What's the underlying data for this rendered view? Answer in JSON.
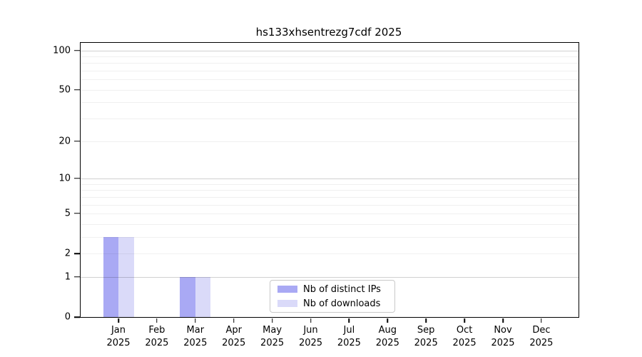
{
  "chart_data": {
    "type": "bar",
    "title": "hs133xhsentrezg7cdf 2025",
    "categories": [
      "Jan 2025",
      "Feb 2025",
      "Mar 2025",
      "Apr 2025",
      "May 2025",
      "Jun 2025",
      "Jul 2025",
      "Aug 2025",
      "Sep 2025",
      "Oct 2025",
      "Nov 2025",
      "Dec 2025"
    ],
    "month_labels": [
      "Jan",
      "Feb",
      "Mar",
      "Apr",
      "May",
      "Jun",
      "Jul",
      "Aug",
      "Sep",
      "Oct",
      "Nov",
      "Dec"
    ],
    "year_label": "2025",
    "series": [
      {
        "name": "Nb of distinct IPs",
        "color": "#a9a9f4",
        "values": [
          3,
          0,
          1,
          0,
          0,
          0,
          0,
          0,
          0,
          0,
          0,
          0
        ]
      },
      {
        "name": "Nb of downloads",
        "color": "#dadaf9",
        "values": [
          3,
          0,
          1,
          0,
          0,
          0,
          0,
          0,
          0,
          0,
          0,
          0
        ]
      }
    ],
    "y_scale": "log1p",
    "ylim": [
      0,
      114
    ],
    "y_ticks": [
      0,
      1,
      2,
      5,
      10,
      20,
      50,
      100
    ],
    "major_gridlines": [
      1,
      10,
      100
    ],
    "minor_gridlines": [
      2,
      3,
      4,
      5,
      6,
      7,
      8,
      9,
      20,
      30,
      40,
      50,
      60,
      70,
      80,
      90
    ],
    "grid": true,
    "legend_position": "inside-bottom-center",
    "axis_color": "#000000",
    "major_grid_color": "rgba(0,0,0,0.18)",
    "minor_grid_color": "rgba(0,0,0,0.06)"
  }
}
